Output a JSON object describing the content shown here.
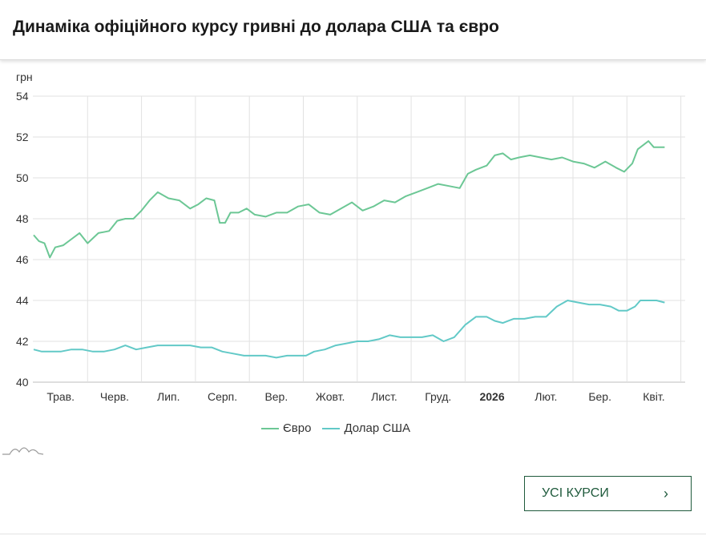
{
  "title": "Динаміка офіційного курсу гривні до долара США та євро",
  "button": {
    "label": "УСІ КУРСИ",
    "chevron": "›"
  },
  "icons": [
    "chevron-right-icon",
    "logo-mountains-icon"
  ],
  "chart_data": {
    "type": "line",
    "ylabel": "грн",
    "ylim": [
      40,
      54
    ],
    "yticks": [
      40,
      42,
      44,
      46,
      48,
      50,
      52,
      54
    ],
    "grid": true,
    "legend_position": "bottom-center",
    "months": [
      {
        "label": "Трав.",
        "bold": false
      },
      {
        "label": "Черв.",
        "bold": false
      },
      {
        "label": "Лип.",
        "bold": false
      },
      {
        "label": "Серп.",
        "bold": false
      },
      {
        "label": "Вер.",
        "bold": false
      },
      {
        "label": "Жовт.",
        "bold": false
      },
      {
        "label": "Лист.",
        "bold": false
      },
      {
        "label": "Груд.",
        "bold": false
      },
      {
        "label": "2026",
        "bold": true
      },
      {
        "label": "Лют.",
        "bold": false
      },
      {
        "label": "Бер.",
        "bold": false
      },
      {
        "label": "Квіт.",
        "bold": false
      }
    ],
    "series": [
      {
        "name": "Євро",
        "color": "#6cc795",
        "points": [
          [
            0.0,
            47.2
          ],
          [
            0.1,
            46.9
          ],
          [
            0.2,
            46.8
          ],
          [
            0.3,
            46.1
          ],
          [
            0.4,
            46.6
          ],
          [
            0.55,
            46.7
          ],
          [
            0.7,
            47.0
          ],
          [
            0.85,
            47.3
          ],
          [
            1.0,
            46.8
          ],
          [
            1.2,
            47.3
          ],
          [
            1.4,
            47.4
          ],
          [
            1.55,
            47.9
          ],
          [
            1.7,
            48.0
          ],
          [
            1.85,
            48.0
          ],
          [
            2.0,
            48.4
          ],
          [
            2.15,
            48.9
          ],
          [
            2.3,
            49.3
          ],
          [
            2.5,
            49.0
          ],
          [
            2.7,
            48.9
          ],
          [
            2.9,
            48.5
          ],
          [
            3.05,
            48.7
          ],
          [
            3.2,
            49.0
          ],
          [
            3.35,
            48.9
          ],
          [
            3.45,
            47.8
          ],
          [
            3.55,
            47.8
          ],
          [
            3.65,
            48.3
          ],
          [
            3.8,
            48.3
          ],
          [
            3.95,
            48.5
          ],
          [
            4.1,
            48.2
          ],
          [
            4.3,
            48.1
          ],
          [
            4.5,
            48.3
          ],
          [
            4.7,
            48.3
          ],
          [
            4.9,
            48.6
          ],
          [
            5.1,
            48.7
          ],
          [
            5.3,
            48.3
          ],
          [
            5.5,
            48.2
          ],
          [
            5.7,
            48.5
          ],
          [
            5.9,
            48.8
          ],
          [
            6.1,
            48.4
          ],
          [
            6.3,
            48.6
          ],
          [
            6.5,
            48.9
          ],
          [
            6.7,
            48.8
          ],
          [
            6.9,
            49.1
          ],
          [
            7.1,
            49.3
          ],
          [
            7.3,
            49.5
          ],
          [
            7.5,
            49.7
          ],
          [
            7.7,
            49.6
          ],
          [
            7.9,
            49.5
          ],
          [
            8.05,
            50.2
          ],
          [
            8.2,
            50.4
          ],
          [
            8.4,
            50.6
          ],
          [
            8.55,
            51.1
          ],
          [
            8.7,
            51.2
          ],
          [
            8.85,
            50.9
          ],
          [
            9.0,
            51.0
          ],
          [
            9.2,
            51.1
          ],
          [
            9.4,
            51.0
          ],
          [
            9.6,
            50.9
          ],
          [
            9.8,
            51.0
          ],
          [
            10.0,
            50.8
          ],
          [
            10.2,
            50.7
          ],
          [
            10.4,
            50.5
          ],
          [
            10.6,
            50.8
          ],
          [
            10.8,
            50.5
          ],
          [
            10.95,
            50.3
          ],
          [
            11.1,
            50.7
          ],
          [
            11.2,
            51.4
          ],
          [
            11.3,
            51.6
          ],
          [
            11.4,
            51.8
          ],
          [
            11.5,
            51.5
          ],
          [
            11.6,
            51.5
          ],
          [
            11.7,
            51.5
          ]
        ]
      },
      {
        "name": "Долар США",
        "color": "#62c9c7",
        "points": [
          [
            0.0,
            41.6
          ],
          [
            0.15,
            41.5
          ],
          [
            0.3,
            41.5
          ],
          [
            0.5,
            41.5
          ],
          [
            0.7,
            41.6
          ],
          [
            0.9,
            41.6
          ],
          [
            1.1,
            41.5
          ],
          [
            1.3,
            41.5
          ],
          [
            1.5,
            41.6
          ],
          [
            1.7,
            41.8
          ],
          [
            1.9,
            41.6
          ],
          [
            2.1,
            41.7
          ],
          [
            2.3,
            41.8
          ],
          [
            2.5,
            41.8
          ],
          [
            2.7,
            41.8
          ],
          [
            2.9,
            41.8
          ],
          [
            3.1,
            41.7
          ],
          [
            3.3,
            41.7
          ],
          [
            3.5,
            41.5
          ],
          [
            3.7,
            41.4
          ],
          [
            3.9,
            41.3
          ],
          [
            4.1,
            41.3
          ],
          [
            4.3,
            41.3
          ],
          [
            4.5,
            41.2
          ],
          [
            4.7,
            41.3
          ],
          [
            4.9,
            41.3
          ],
          [
            5.05,
            41.3
          ],
          [
            5.2,
            41.5
          ],
          [
            5.4,
            41.6
          ],
          [
            5.6,
            41.8
          ],
          [
            5.8,
            41.9
          ],
          [
            6.0,
            42.0
          ],
          [
            6.2,
            42.0
          ],
          [
            6.4,
            42.1
          ],
          [
            6.6,
            42.3
          ],
          [
            6.8,
            42.2
          ],
          [
            7.0,
            42.2
          ],
          [
            7.2,
            42.2
          ],
          [
            7.4,
            42.3
          ],
          [
            7.6,
            42.0
          ],
          [
            7.8,
            42.2
          ],
          [
            8.0,
            42.8
          ],
          [
            8.2,
            43.2
          ],
          [
            8.4,
            43.2
          ],
          [
            8.55,
            43.0
          ],
          [
            8.7,
            42.9
          ],
          [
            8.9,
            43.1
          ],
          [
            9.1,
            43.1
          ],
          [
            9.3,
            43.2
          ],
          [
            9.5,
            43.2
          ],
          [
            9.7,
            43.7
          ],
          [
            9.9,
            44.0
          ],
          [
            10.1,
            43.9
          ],
          [
            10.3,
            43.8
          ],
          [
            10.5,
            43.8
          ],
          [
            10.7,
            43.7
          ],
          [
            10.85,
            43.5
          ],
          [
            11.0,
            43.5
          ],
          [
            11.15,
            43.7
          ],
          [
            11.25,
            44.0
          ],
          [
            11.4,
            44.0
          ],
          [
            11.55,
            44.0
          ],
          [
            11.7,
            43.9
          ]
        ]
      }
    ]
  }
}
